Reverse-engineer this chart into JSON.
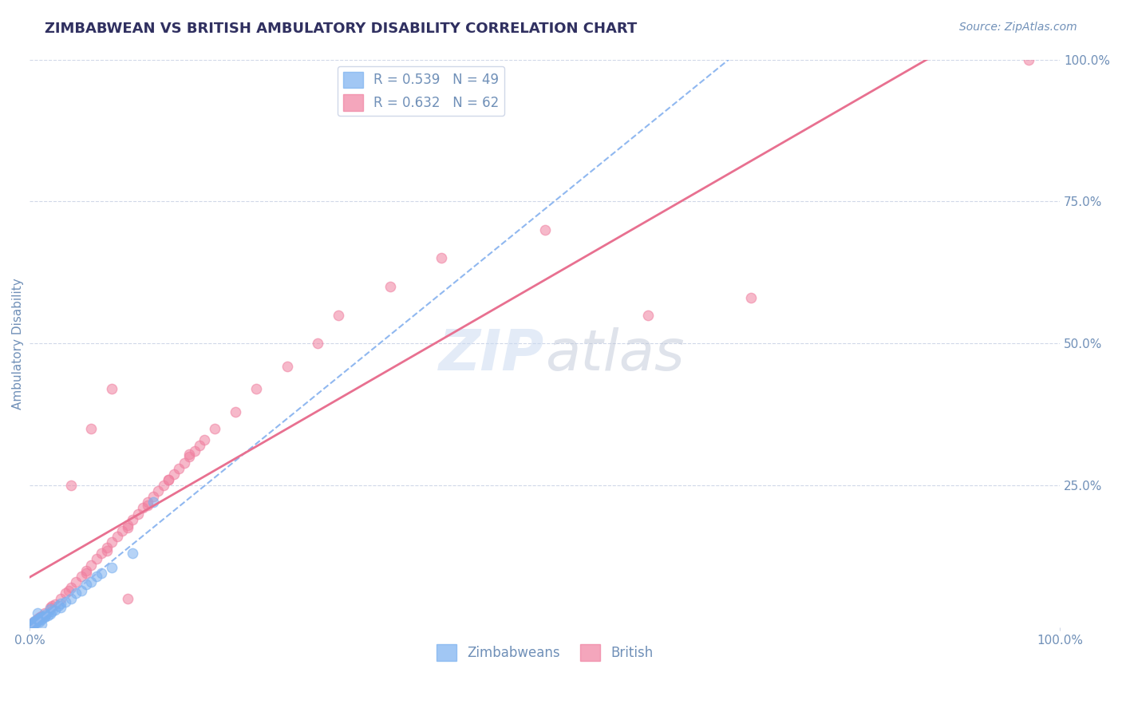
{
  "title": "ZIMBABWEAN VS BRITISH AMBULATORY DISABILITY CORRELATION CHART",
  "source_text": "Source: ZipAtlas.com",
  "xlabel": "",
  "ylabel": "Ambulatory Disability",
  "watermark_zip": "ZIP",
  "watermark_atlas": "atlas",
  "xmin": 0.0,
  "xmax": 100.0,
  "ymin": 0.0,
  "ymax": 100.0,
  "xtick_labels": [
    "0.0%",
    "100.0%"
  ],
  "xtick_positions": [
    0.0,
    100.0
  ],
  "ytick_labels": [
    "100.0%",
    "75.0%",
    "50.0%",
    "25.0%"
  ],
  "ytick_positions": [
    100.0,
    75.0,
    50.0,
    25.0
  ],
  "legend_entries": [
    {
      "label": "R = 0.539   N = 49",
      "color": "#a8c8f8"
    },
    {
      "label": "R = 0.632   N = 62",
      "color": "#f8a8b8"
    }
  ],
  "zimbabwean_color": "#7ab0f0",
  "british_color": "#f080a0",
  "zimbabwean_scatter": [
    [
      0.5,
      0.8
    ],
    [
      0.7,
      1.2
    ],
    [
      1.0,
      1.5
    ],
    [
      1.2,
      0.6
    ],
    [
      0.3,
      0.4
    ],
    [
      0.8,
      2.5
    ],
    [
      1.5,
      1.8
    ],
    [
      0.4,
      0.5
    ],
    [
      0.6,
      0.9
    ],
    [
      2.0,
      2.3
    ],
    [
      0.2,
      0.3
    ],
    [
      1.8,
      2.1
    ],
    [
      0.5,
      1.1
    ],
    [
      2.5,
      3.0
    ],
    [
      3.0,
      3.5
    ],
    [
      1.2,
      1.4
    ],
    [
      0.9,
      1.0
    ],
    [
      0.3,
      0.6
    ],
    [
      4.0,
      5.0
    ],
    [
      0.4,
      0.7
    ],
    [
      1.5,
      2.0
    ],
    [
      0.6,
      0.8
    ],
    [
      2.2,
      2.8
    ],
    [
      0.8,
      1.3
    ],
    [
      5.0,
      6.5
    ],
    [
      6.0,
      8.0
    ],
    [
      3.5,
      4.5
    ],
    [
      7.0,
      9.5
    ],
    [
      0.1,
      0.2
    ],
    [
      0.2,
      0.4
    ],
    [
      0.4,
      0.8
    ],
    [
      1.0,
      1.6
    ],
    [
      2.0,
      3.2
    ],
    [
      0.7,
      1.1
    ],
    [
      1.3,
      1.9
    ],
    [
      0.5,
      0.9
    ],
    [
      3.0,
      4.2
    ],
    [
      4.5,
      6.0
    ],
    [
      8.0,
      10.5
    ],
    [
      5.5,
      7.5
    ],
    [
      2.8,
      3.8
    ],
    [
      1.6,
      2.4
    ],
    [
      0.9,
      1.5
    ],
    [
      6.5,
      9.0
    ],
    [
      10.0,
      13.0
    ],
    [
      0.3,
      0.5
    ],
    [
      1.1,
      1.7
    ],
    [
      12.0,
      22.0
    ],
    [
      0.8,
      1.2
    ]
  ],
  "british_scatter": [
    [
      0.5,
      1.0
    ],
    [
      0.8,
      1.5
    ],
    [
      1.2,
      2.0
    ],
    [
      1.5,
      2.5
    ],
    [
      2.0,
      3.5
    ],
    [
      2.5,
      4.0
    ],
    [
      3.0,
      5.0
    ],
    [
      3.5,
      6.0
    ],
    [
      4.0,
      7.0
    ],
    [
      4.5,
      8.0
    ],
    [
      5.0,
      9.0
    ],
    [
      5.5,
      10.0
    ],
    [
      6.0,
      11.0
    ],
    [
      6.5,
      12.0
    ],
    [
      7.0,
      13.0
    ],
    [
      7.5,
      14.0
    ],
    [
      8.0,
      15.0
    ],
    [
      8.5,
      16.0
    ],
    [
      9.0,
      17.0
    ],
    [
      9.5,
      18.0
    ],
    [
      10.0,
      19.0
    ],
    [
      10.5,
      20.0
    ],
    [
      11.0,
      21.0
    ],
    [
      11.5,
      22.0
    ],
    [
      12.0,
      23.0
    ],
    [
      12.5,
      24.0
    ],
    [
      13.0,
      25.0
    ],
    [
      13.5,
      26.0
    ],
    [
      14.0,
      27.0
    ],
    [
      14.5,
      28.0
    ],
    [
      15.0,
      29.0
    ],
    [
      15.5,
      30.0
    ],
    [
      16.0,
      31.0
    ],
    [
      16.5,
      32.0
    ],
    [
      17.0,
      33.0
    ],
    [
      0.3,
      0.8
    ],
    [
      0.7,
      1.2
    ],
    [
      1.0,
      1.8
    ],
    [
      2.2,
      3.8
    ],
    [
      3.8,
      6.5
    ],
    [
      5.5,
      9.5
    ],
    [
      7.5,
      13.5
    ],
    [
      9.5,
      17.5
    ],
    [
      11.5,
      21.5
    ],
    [
      13.5,
      26.0
    ],
    [
      15.5,
      30.5
    ],
    [
      4.0,
      25.0
    ],
    [
      6.0,
      35.0
    ],
    [
      8.0,
      42.0
    ],
    [
      9.5,
      5.0
    ],
    [
      18.0,
      35.0
    ],
    [
      20.0,
      38.0
    ],
    [
      22.0,
      42.0
    ],
    [
      25.0,
      46.0
    ],
    [
      28.0,
      50.0
    ],
    [
      30.0,
      55.0
    ],
    [
      35.0,
      60.0
    ],
    [
      40.0,
      65.0
    ],
    [
      50.0,
      70.0
    ],
    [
      60.0,
      55.0
    ],
    [
      70.0,
      58.0
    ],
    [
      97.0,
      100.0
    ]
  ],
  "zim_line_color": "#90b8f0",
  "brit_line_color": "#e87090",
  "grid_color": "#d0d8e8",
  "background_color": "#ffffff",
  "title_color": "#303060",
  "tick_label_color": "#7090b8"
}
